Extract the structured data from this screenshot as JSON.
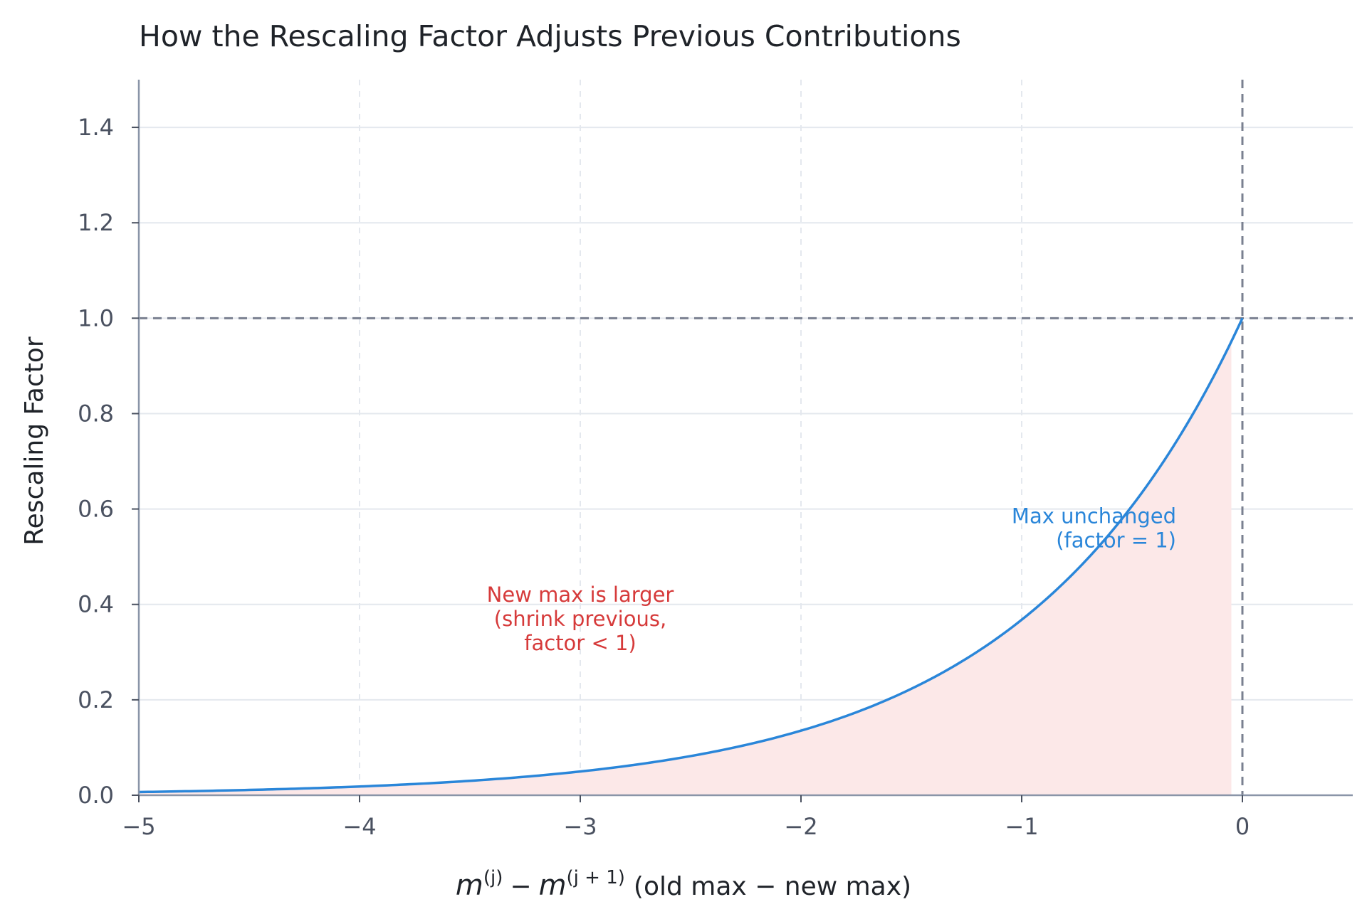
{
  "chart_data": {
    "type": "line",
    "title": "How the Rescaling Factor Adjusts Previous Contributions",
    "xlabel": {
      "math_m1": "m",
      "math_sup1": "(j)",
      "math_minus": "−",
      "math_m2": "m",
      "math_sup2": "(j + 1)",
      "text": "(old max − new max)"
    },
    "ylabel": "Rescaling Factor",
    "xlim": [
      -5,
      0.5
    ],
    "ylim": [
      0,
      1.5
    ],
    "x_ticks": [
      -5,
      -4,
      -3,
      -2,
      -1,
      0
    ],
    "x_tick_labels": [
      "−5",
      "−4",
      "−3",
      "−2",
      "−1",
      "0"
    ],
    "y_ticks": [
      0.0,
      0.2,
      0.4,
      0.6,
      0.8,
      1.0,
      1.2,
      1.4
    ],
    "y_tick_labels": [
      "0.0",
      "0.2",
      "0.4",
      "0.6",
      "0.8",
      "1.0",
      "1.2",
      "1.4"
    ],
    "grid": true,
    "series": [
      {
        "function": "exp(x)",
        "x_range": [
          -5,
          0
        ],
        "sample_points": [
          {
            "x": -5,
            "y": 0.007
          },
          {
            "x": -4,
            "y": 0.018
          },
          {
            "x": -3,
            "y": 0.05
          },
          {
            "x": -2,
            "y": 0.135
          },
          {
            "x": -1,
            "y": 0.368
          },
          {
            "x": 0,
            "y": 1.0
          }
        ],
        "color": "#2a86d9"
      }
    ],
    "shaded_region": {
      "x_range": [
        -5,
        -0.05
      ],
      "under": "curve",
      "color": "#fce8e8"
    },
    "reference_lines": [
      {
        "orientation": "horizontal",
        "value": 1.0,
        "style": "dashed",
        "color": "#7a8090"
      },
      {
        "orientation": "vertical",
        "value": 0,
        "style": "dashed",
        "color": "#7a8090"
      }
    ],
    "annotations": [
      {
        "lines": [
          "New max is larger",
          "(shrink previous,",
          "factor < 1)"
        ],
        "x": -3,
        "y": 0.37,
        "color": "#d63a3a",
        "align": "center"
      },
      {
        "lines": [
          "Max unchanged",
          "(factor = 1)"
        ],
        "x": -0.3,
        "y": 0.56,
        "color": "#2a86d9",
        "align": "right"
      }
    ]
  }
}
